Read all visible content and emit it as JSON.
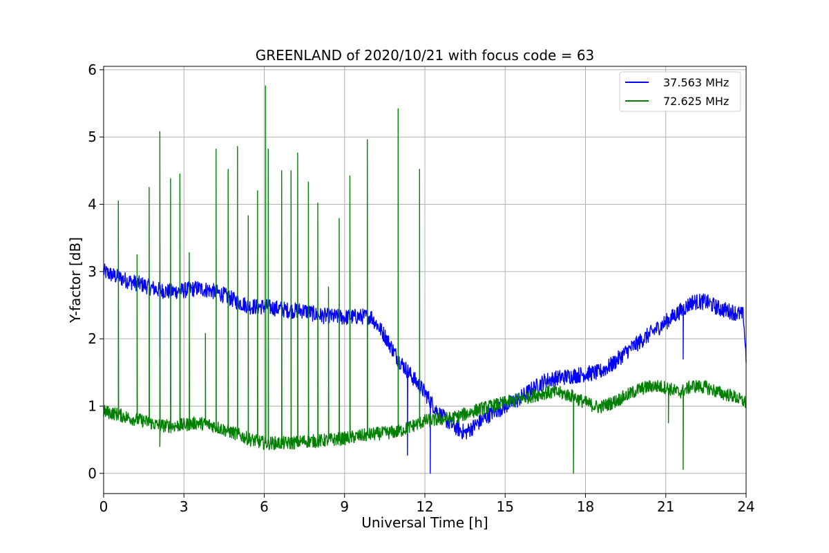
{
  "chart_data": {
    "type": "line",
    "title": "GREENLAND of 2020/10/21 with focus code = 63",
    "xlabel": "Universal Time [h]",
    "ylabel": "Y-factor [dB]",
    "xlim": [
      0,
      24
    ],
    "ylim": [
      -0.3,
      6.05
    ],
    "xticks": [
      0,
      3,
      6,
      9,
      12,
      15,
      18,
      21,
      24
    ],
    "yticks": [
      0,
      1,
      2,
      3,
      4,
      5,
      6
    ],
    "grid": true,
    "legend_position": "top-right",
    "series": [
      {
        "name": "37.563 MHz",
        "color": "#0000ff",
        "noise_amplitude": 0.12,
        "x": [
          0,
          0.5,
          1,
          1.5,
          2,
          2.5,
          3,
          3.5,
          4,
          4.5,
          5,
          5.5,
          6,
          6.5,
          7,
          7.5,
          8,
          8.5,
          9,
          9.5,
          10,
          10.5,
          11,
          11.5,
          12,
          12.5,
          13,
          13.5,
          14,
          14.5,
          15,
          15.5,
          16,
          16.5,
          17,
          17.5,
          18,
          18.5,
          19,
          19.5,
          20,
          20.5,
          21,
          21.5,
          22,
          22.5,
          23,
          23.5,
          23.9,
          24
        ],
        "y": [
          3.0,
          2.92,
          2.85,
          2.8,
          2.73,
          2.7,
          2.72,
          2.75,
          2.72,
          2.65,
          2.55,
          2.48,
          2.48,
          2.45,
          2.42,
          2.42,
          2.35,
          2.33,
          2.32,
          2.33,
          2.33,
          2.05,
          1.7,
          1.45,
          1.2,
          0.9,
          0.72,
          0.6,
          0.75,
          0.9,
          1.0,
          1.1,
          1.25,
          1.38,
          1.42,
          1.45,
          1.48,
          1.5,
          1.62,
          1.8,
          1.95,
          2.1,
          2.25,
          2.4,
          2.55,
          2.55,
          2.45,
          2.4,
          2.35,
          1.7
        ],
        "dips": [
          {
            "x": 2.1,
            "y": 1.75
          },
          {
            "x": 11.35,
            "y": 0.27
          },
          {
            "x": 12.2,
            "y": 0.0
          },
          {
            "x": 21.65,
            "y": 1.7
          }
        ]
      },
      {
        "name": "72.625 MHz",
        "color": "#008000",
        "noise_amplitude": 0.1,
        "x": [
          0,
          0.5,
          1,
          1.5,
          2,
          2.5,
          3,
          3.5,
          4,
          4.5,
          5,
          5.5,
          6,
          6.5,
          7,
          7.5,
          8,
          8.5,
          9,
          9.5,
          10,
          10.5,
          11,
          11.5,
          12,
          12.5,
          13,
          13.5,
          14,
          14.5,
          15,
          15.5,
          16,
          16.5,
          17,
          17.5,
          18,
          18.5,
          19,
          19.5,
          20,
          20.5,
          21,
          21.5,
          22,
          22.5,
          23,
          23.5,
          24
        ],
        "y": [
          0.92,
          0.88,
          0.82,
          0.78,
          0.72,
          0.7,
          0.72,
          0.75,
          0.72,
          0.65,
          0.58,
          0.5,
          0.45,
          0.45,
          0.45,
          0.48,
          0.48,
          0.5,
          0.52,
          0.55,
          0.58,
          0.6,
          0.62,
          0.7,
          0.78,
          0.8,
          0.82,
          0.88,
          0.95,
          1.0,
          1.05,
          1.1,
          1.15,
          1.2,
          1.2,
          1.15,
          1.05,
          0.98,
          1.05,
          1.15,
          1.25,
          1.3,
          1.28,
          1.2,
          1.3,
          1.28,
          1.2,
          1.15,
          1.05
        ],
        "spikes": [
          {
            "x": 0.55,
            "y": 4.05
          },
          {
            "x": 1.25,
            "y": 3.25
          },
          {
            "x": 1.7,
            "y": 4.25
          },
          {
            "x": 2.1,
            "y": 5.08
          },
          {
            "x": 2.5,
            "y": 4.38
          },
          {
            "x": 2.85,
            "y": 4.45
          },
          {
            "x": 3.2,
            "y": 3.28
          },
          {
            "x": 3.8,
            "y": 2.08
          },
          {
            "x": 4.2,
            "y": 4.82
          },
          {
            "x": 4.65,
            "y": 4.52
          },
          {
            "x": 5.0,
            "y": 4.86
          },
          {
            "x": 5.4,
            "y": 3.83
          },
          {
            "x": 5.75,
            "y": 4.2
          },
          {
            "x": 6.05,
            "y": 5.76
          },
          {
            "x": 6.15,
            "y": 4.82
          },
          {
            "x": 6.65,
            "y": 4.5
          },
          {
            "x": 7.0,
            "y": 4.5
          },
          {
            "x": 7.25,
            "y": 4.76
          },
          {
            "x": 7.65,
            "y": 4.33
          },
          {
            "x": 8.0,
            "y": 4.02
          },
          {
            "x": 8.4,
            "y": 2.77
          },
          {
            "x": 8.8,
            "y": 3.79
          },
          {
            "x": 9.2,
            "y": 4.42
          },
          {
            "x": 9.85,
            "y": 4.96
          },
          {
            "x": 11.0,
            "y": 5.42
          },
          {
            "x": 11.8,
            "y": 4.52
          }
        ],
        "dips": [
          {
            "x": 2.1,
            "y": 0.4
          },
          {
            "x": 17.55,
            "y": 0.0
          },
          {
            "x": 21.65,
            "y": 0.06
          },
          {
            "x": 21.1,
            "y": 0.75
          }
        ]
      }
    ]
  }
}
